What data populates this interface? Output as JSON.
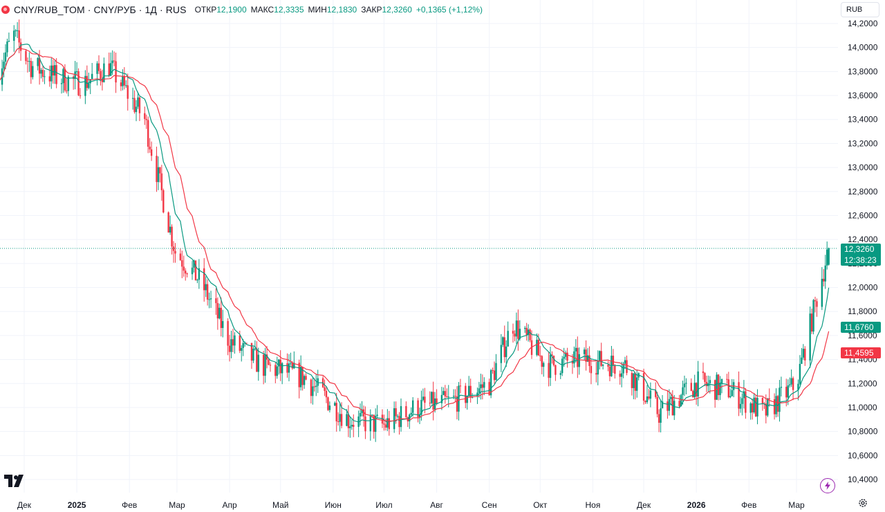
{
  "legend": {
    "symbol": "CNY/RUB_TOM · CNY/РУБ · 1Д · RUS",
    "open_label": "ОТКР",
    "open": "12,1900",
    "high_label": "МАКС",
    "high": "12,3335",
    "low_label": "МИН",
    "low": "12,1830",
    "close_label": "ЗАКР",
    "close": "12,3260",
    "change": "+0,1365 (+1,12%)"
  },
  "currency": "RUB",
  "tags": {
    "last_price": "12,3260",
    "countdown": "12:38:23",
    "ma_fast": "11,6760",
    "ma_slow": "11,4595"
  },
  "colors": {
    "up": "#089981",
    "down": "#f23645",
    "ma_fast": "#089981",
    "ma_slow": "#f23645",
    "tag_slow": "#f23645",
    "tag_fast": "#089981",
    "grid": "#f0f3fa"
  },
  "icons": {
    "logo": "tradingview-logo-icon",
    "bolt": "lightning-bolt-icon",
    "gear": "gear-icon",
    "source": "exchange-logo-icon"
  },
  "chart_data": {
    "type": "candlestick",
    "y_range": [
      10.32,
      14.32
    ],
    "y_ticks": [
      "14,2000",
      "14,0000",
      "13,8000",
      "13,6000",
      "13,4000",
      "13,2000",
      "13,0000",
      "12,8000",
      "12,6000",
      "12,4000",
      "12,2000",
      "12,0000",
      "11,8000",
      "11,6000",
      "11,4000",
      "11,2000",
      "11,0000",
      "10,8000",
      "10,6000",
      "10,4000"
    ],
    "y_tick_values": [
      14.2,
      14.0,
      13.8,
      13.6,
      13.4,
      13.2,
      13.0,
      12.8,
      12.6,
      12.4,
      12.2,
      12.0,
      11.8,
      11.6,
      11.4,
      11.2,
      11.0,
      10.8,
      10.6,
      10.4
    ],
    "x_labels": [
      "Дек",
      "2025",
      "Фев",
      "Мар",
      "Апр",
      "Май",
      "Июн",
      "Июл",
      "Авг",
      "Сен",
      "Окт",
      "Ноя",
      "Дек",
      "2026",
      "Фев",
      "Мар"
    ],
    "x_label_dates": [
      "2024-12-01",
      "2025-01-01",
      "2025-02-01",
      "2025-03-01",
      "2025-04-01",
      "2025-05-01",
      "2025-06-01",
      "2025-07-01",
      "2025-08-01",
      "2025-09-01",
      "2025-10-01",
      "2025-11-01",
      "2025-12-01",
      "2026-01-01",
      "2026-02-01",
      "2026-03-01"
    ],
    "x_bold": [
      "2025",
      "2026"
    ],
    "series": [
      {
        "type": "candlestick",
        "trend_dates": [
          "2024-11-15",
          "2024-11-25",
          "2024-12-05",
          "2024-12-20",
          "2025-01-05",
          "2025-01-20",
          "2025-02-10",
          "2025-02-28",
          "2025-03-15",
          "2025-04-01",
          "2025-04-20",
          "2025-05-15",
          "2025-06-10",
          "2025-07-01",
          "2025-07-20",
          "2025-08-10",
          "2025-09-01",
          "2025-09-15",
          "2025-10-05",
          "2025-10-25",
          "2025-11-20",
          "2025-12-10",
          "2026-01-01",
          "2026-01-20",
          "2026-02-10",
          "2026-03-01",
          "2026-03-20"
        ],
        "trend_values": [
          13.8,
          14.1,
          13.85,
          13.75,
          13.7,
          13.85,
          13.4,
          12.3,
          12.05,
          11.55,
          11.35,
          11.25,
          10.9,
          10.85,
          11.0,
          11.05,
          11.2,
          11.7,
          11.35,
          11.4,
          11.35,
          10.95,
          11.2,
          11.15,
          10.95,
          11.2,
          12.33
        ],
        "noise": 0.11,
        "last": {
          "date": "2026-03-19",
          "open": 12.19,
          "high": 12.3335,
          "low": 12.183,
          "close": 12.326
        }
      },
      {
        "name": "",
        "type": "sma",
        "period": 10,
        "last_value": 11.676
      },
      {
        "name": "",
        "type": "sma",
        "period": 20,
        "last_value": 11.4595
      }
    ]
  }
}
